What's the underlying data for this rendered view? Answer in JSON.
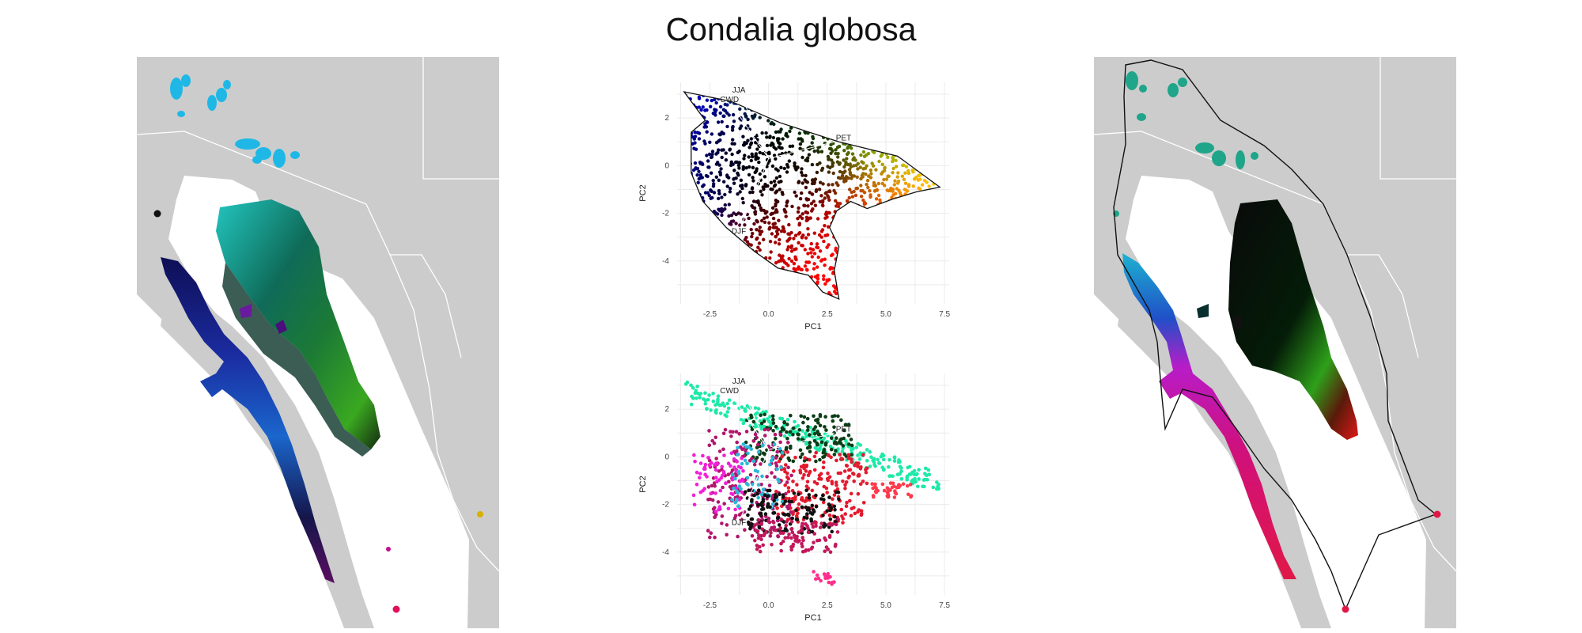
{
  "figure": {
    "title": "Condalia globosa"
  },
  "chart_data": [
    {
      "type": "scatter",
      "panel": "pca-top",
      "xlabel": "PC1",
      "ylabel": "PC2",
      "xticks": [
        -2.5,
        0.0,
        2.5,
        5.0,
        7.5
      ],
      "xtick_labels": [
        "-2.5",
        "0.0",
        "2.5",
        "5.0",
        "7.5"
      ],
      "yticks": [
        -4,
        -2,
        0,
        2
      ],
      "ytick_labels": [
        "-4",
        "-2",
        "0",
        "2"
      ],
      "xlim": [
        -3.9,
        7.7
      ],
      "ylim": [
        -5.8,
        3.5
      ],
      "grid": true,
      "center": [
        0.0,
        0.3
      ],
      "vectors": [
        {
          "label": "JJA",
          "x": -1.2,
          "y": 3.0
        },
        {
          "label": "CWD",
          "x": -1.6,
          "y": 2.6
        },
        {
          "label": "PET",
          "x": 2.8,
          "y": 1.0
        },
        {
          "label": "DJF",
          "x": -1.2,
          "y": -2.6
        }
      ],
      "hull": [
        [
          -3.6,
          3.1
        ],
        [
          -1.6,
          2.7
        ],
        [
          0.5,
          1.8
        ],
        [
          3.0,
          1.0
        ],
        [
          5.5,
          0.4
        ],
        [
          7.3,
          -0.9
        ],
        [
          6.3,
          -1.1
        ],
        [
          5.3,
          -1.4
        ],
        [
          4.2,
          -1.8
        ],
        [
          3.5,
          -1.5
        ],
        [
          2.9,
          -1.9
        ],
        [
          2.6,
          -2.6
        ],
        [
          3.0,
          -3.4
        ],
        [
          2.8,
          -4.4
        ],
        [
          3.0,
          -5.6
        ],
        [
          2.3,
          -5.3
        ],
        [
          1.7,
          -4.6
        ],
        [
          0.4,
          -4.3
        ],
        [
          -0.6,
          -3.6
        ],
        [
          -1.8,
          -2.6
        ],
        [
          -2.8,
          -1.5
        ],
        [
          -3.3,
          -0.3
        ],
        [
          -3.3,
          1.4
        ],
        [
          -2.7,
          1.9
        ]
      ]
    },
    {
      "type": "scatter",
      "panel": "pca-bottom",
      "xlabel": "PC1",
      "ylabel": "PC2",
      "xticks": [
        -2.5,
        0.0,
        2.5,
        5.0,
        7.5
      ],
      "xtick_labels": [
        "-2.5",
        "0.0",
        "2.5",
        "5.0",
        "7.5"
      ],
      "yticks": [
        -4,
        -2,
        0,
        2
      ],
      "ytick_labels": [
        "-4",
        "-2",
        "0",
        "2"
      ],
      "xlim": [
        -3.9,
        7.7
      ],
      "ylim": [
        -5.8,
        3.5
      ],
      "grid": true,
      "center": [
        0.0,
        0.3
      ],
      "vectors": [
        {
          "label": "JJA",
          "x": -1.2,
          "y": 3.0
        },
        {
          "label": "CWD",
          "x": -1.6,
          "y": 2.6
        },
        {
          "label": "PET",
          "x": 2.8,
          "y": 1.0
        },
        {
          "label": "DJF",
          "x": -1.2,
          "y": -2.6
        }
      ],
      "clusters": [
        {
          "color": "#1de9a8",
          "x": [
            -3.6,
            7.3
          ],
          "y": [
            -0.9,
            3.2
          ],
          "n": 260,
          "shape": "band"
        },
        {
          "color": "#0c3d16",
          "x": [
            -1.0,
            3.6
          ],
          "y": [
            -0.2,
            1.8
          ],
          "n": 160
        },
        {
          "color": "#e31a2e",
          "x": [
            0.3,
            4.2
          ],
          "y": [
            -2.8,
            0.2
          ],
          "n": 200
        },
        {
          "color": "#b2156c",
          "x": [
            -2.6,
            1.0
          ],
          "y": [
            -3.4,
            1.2
          ],
          "n": 200
        },
        {
          "color": "#f21fd8",
          "x": [
            -3.2,
            -1.0
          ],
          "y": [
            -2.3,
            0.3
          ],
          "n": 70
        },
        {
          "color": "#29b8d8",
          "x": [
            -1.6,
            0.6
          ],
          "y": [
            -2.2,
            0.6
          ],
          "n": 60
        },
        {
          "color": "#111111",
          "x": [
            -1.0,
            3.0
          ],
          "y": [
            -3.2,
            -1.4
          ],
          "n": 140
        },
        {
          "color": "#c2185b",
          "x": [
            -0.6,
            3.0
          ],
          "y": [
            -4.0,
            -2.6
          ],
          "n": 100
        },
        {
          "color": "#ff3a4c",
          "x": [
            4.3,
            6.1
          ],
          "y": [
            -1.7,
            -1.1
          ],
          "n": 40
        },
        {
          "color": "#ff2f8c",
          "x": [
            1.9,
            2.8
          ],
          "y": [
            -5.4,
            -4.8
          ],
          "n": 16
        }
      ]
    }
  ]
}
